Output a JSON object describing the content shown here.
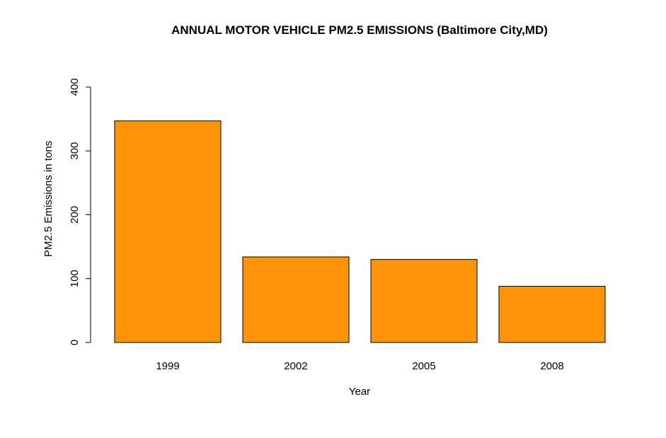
{
  "chart_data": {
    "type": "bar",
    "title": "ANNUAL MOTOR VEHICLE PM2.5 EMISSIONS (Baltimore City,MD)",
    "xlabel": "Year",
    "ylabel": "PM2.5 Emissions in tons",
    "categories": [
      "1999",
      "2002",
      "2005",
      "2008"
    ],
    "values": [
      347,
      134,
      130,
      88
    ],
    "ylim": [
      0,
      400
    ],
    "yticks": [
      0,
      100,
      200,
      300,
      400
    ],
    "grid": false,
    "bar_color": "#ff9408"
  }
}
